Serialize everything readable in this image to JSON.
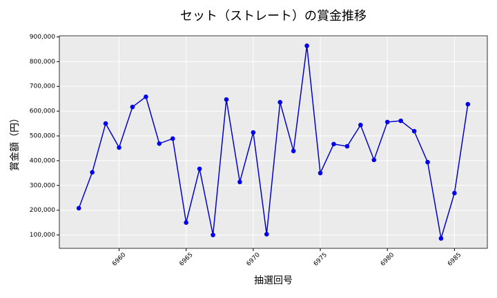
{
  "chart_data": {
    "type": "line",
    "title": "セット（ストレート）の賞金推移",
    "xlabel": "抽選回号",
    "ylabel": "賞金額（円）",
    "x": [
      6957,
      6958,
      6959,
      6960,
      6961,
      6962,
      6963,
      6964,
      6965,
      6966,
      6967,
      6968,
      6969,
      6970,
      6971,
      6972,
      6973,
      6974,
      6975,
      6976,
      6977,
      6978,
      6979,
      6980,
      6981,
      6982,
      6983,
      6984,
      6985,
      6986
    ],
    "series": [
      {
        "color": "#0000cc",
        "marker_color": "#0000ee",
        "values": [
          208000,
          353000,
          550000,
          453000,
          617000,
          658000,
          469000,
          489000,
          150000,
          367000,
          100000,
          647000,
          314000,
          514000,
          103000,
          636000,
          439000,
          864000,
          350000,
          467000,
          458000,
          544000,
          403000,
          556000,
          561000,
          519000,
          394000,
          86000,
          269000,
          628000
        ]
      }
    ],
    "xlim": [
      6955.55,
      6987.45
    ],
    "xticks": [
      6960,
      6965,
      6970,
      6975,
      6980,
      6985
    ],
    "ylim": [
      46000,
      904000
    ],
    "yticks": [
      {
        "value": 100000,
        "label": "100,000"
      },
      {
        "value": 200000,
        "label": "200,000"
      },
      {
        "value": 300000,
        "label": "300,000"
      },
      {
        "value": 400000,
        "label": "400,000"
      },
      {
        "value": 500000,
        "label": "500,000"
      },
      {
        "value": 600000,
        "label": "600,000"
      },
      {
        "value": 700000,
        "label": "700,000"
      },
      {
        "value": 800000,
        "label": "800,000"
      },
      {
        "value": 900000,
        "label": "900,000"
      }
    ],
    "grid": true,
    "background": "#ebebeb"
  }
}
